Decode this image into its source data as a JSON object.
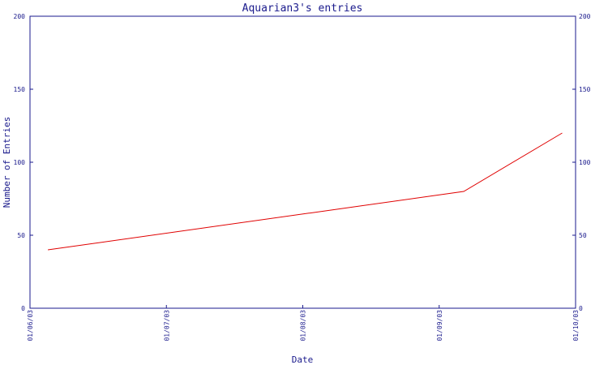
{
  "chart_data": {
    "type": "line",
    "title": "Aquarian3's entries",
    "xlabel": "Date",
    "ylabel": "Number of Entries",
    "x_ticks": [
      "01/06/03",
      "01/07/03",
      "01/08/03",
      "01/09/03",
      "01/10/03"
    ],
    "y_ticks": [
      0,
      50,
      100,
      150,
      200
    ],
    "ylim": [
      0,
      200
    ],
    "xlim": [
      "2003-06-01",
      "2003-10-01"
    ],
    "grid": false,
    "series": [
      {
        "x": [
          "2003-06-05",
          "2003-09-06",
          "2003-09-28"
        ],
        "values": [
          40,
          80,
          120
        ]
      }
    ]
  },
  "colors": {
    "axis": "#1a1a8c",
    "series": "#e00000",
    "background": "#ffffff"
  }
}
